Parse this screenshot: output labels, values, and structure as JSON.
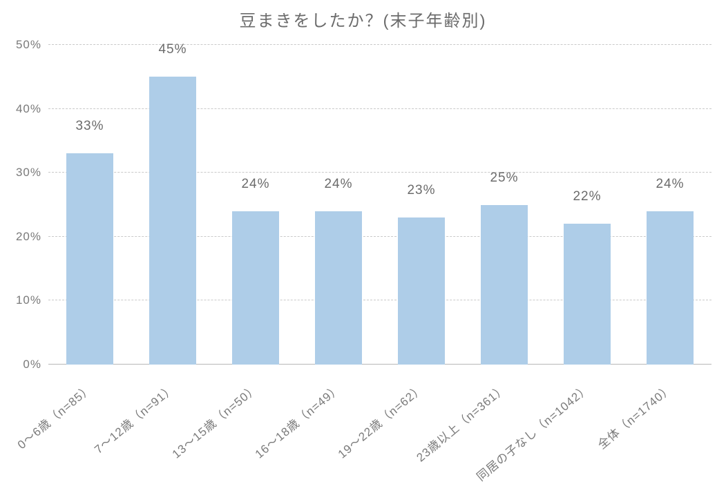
{
  "chart": {
    "type": "bar",
    "title": "豆まきをしたか？(末子年齢別)",
    "title_fontsize": 24,
    "title_color": "#6b6b6b",
    "background_color": "#ffffff",
    "categories": [
      "0～6歳（n=85）",
      "7～12歳（n=91）",
      "13～15歳（n=50）",
      "16～18歳（n=49）",
      "19～22歳（n=62）",
      "23歳以上（n=361）",
      "同居の子なし（n=1042）",
      "全体（n=1740）"
    ],
    "values": [
      33,
      45,
      24,
      24,
      23,
      25,
      22,
      24
    ],
    "value_labels": [
      "33%",
      "45%",
      "24%",
      "24%",
      "23%",
      "25%",
      "22%",
      "24%"
    ],
    "bar_color": "#aecde8",
    "bar_width_ratio": 0.56,
    "ylim": [
      0,
      50
    ],
    "ytick_step": 10,
    "ytick_labels": [
      "0%",
      "10%",
      "20%",
      "30%",
      "40%",
      "50%"
    ],
    "axis_label_color": "#7a7a7a",
    "axis_label_fontsize": 17,
    "value_label_color": "#6b6b6b",
    "value_label_fontsize": 19,
    "xlabel_fontsize": 17,
    "xlabel_color": "#7a7a7a",
    "grid_color": "#c9c9c9",
    "baseline_color": "#b8b8b8",
    "xlabel_rotation_deg": -40
  }
}
